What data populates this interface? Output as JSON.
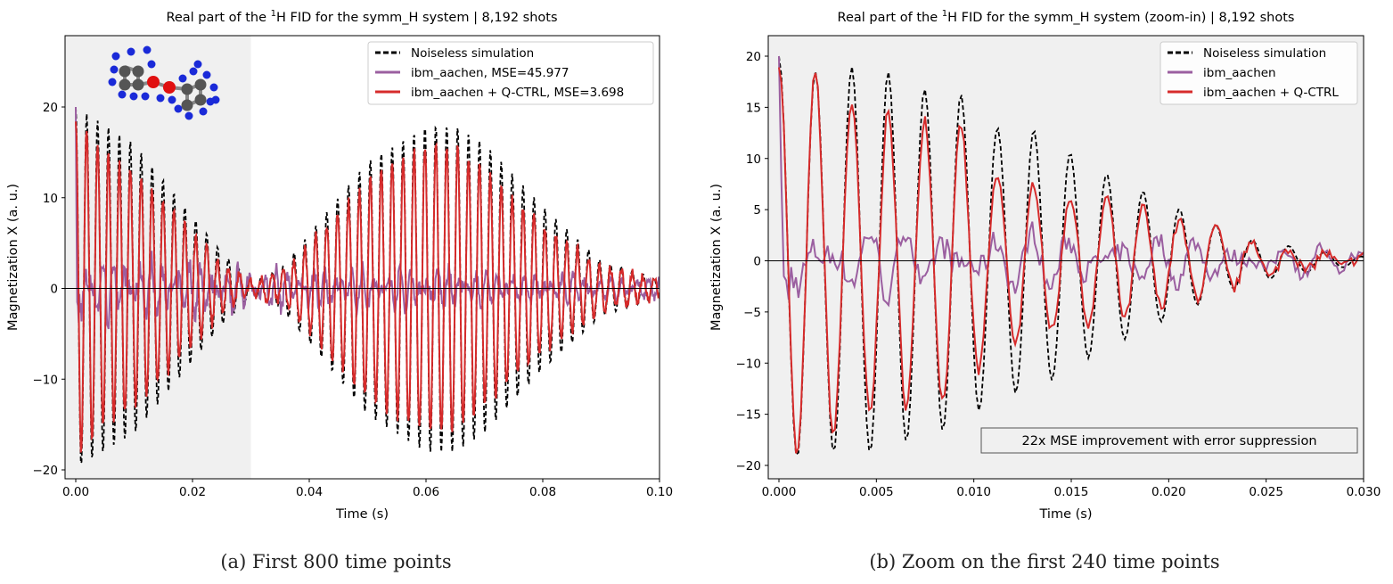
{
  "captions": [
    "(a) First 800 time points",
    "(b) Zoom on the first 240 time points"
  ],
  "colors": {
    "noiseless": "#000000",
    "ibm_aachen": "#9b5fa0",
    "qctrl": "#d62b2b",
    "background": "#f0f0f0"
  },
  "chart_data": [
    {
      "type": "line",
      "title_pre": "Real part of the ",
      "title_sup": "1",
      "title_post": "H FID for the symm_H system | 8,192 shots",
      "xlabel": "Time (s)",
      "ylabel": "Magnetization X (a. u.)",
      "xlim": [
        0,
        0.1
      ],
      "ylim": [
        -21,
        27
      ],
      "xticks": [
        "0.00",
        "0.02",
        "0.04",
        "0.06",
        "0.08",
        "0.10"
      ],
      "xtick_values": [
        0,
        0.02,
        0.04,
        0.06,
        0.08,
        0.1
      ],
      "yticks": [
        "−20",
        "−10",
        "0",
        "10",
        "20"
      ],
      "ytick_values": [
        -20,
        -10,
        0,
        10,
        20
      ],
      "shaded_region": [
        0,
        0.03
      ],
      "legend_position": "top-right",
      "series": [
        {
          "name": "Noiseless simulation",
          "style": "dashed",
          "envelope_t": [
            0,
            0.005,
            0.01,
            0.015,
            0.02,
            0.025,
            0.03,
            0.035,
            0.04,
            0.05,
            0.06,
            0.065,
            0.07,
            0.08,
            0.09,
            0.1
          ],
          "envelope_amp": [
            20,
            18,
            16,
            12,
            8,
            4,
            0.8,
            2,
            6,
            14,
            18,
            18,
            16,
            9,
            3,
            1
          ]
        },
        {
          "name": "ibm_aachen, MSE=45.977",
          "style": "solid",
          "envelope_t": [
            0,
            0.03,
            0.06,
            0.1
          ],
          "envelope_amp": [
            3.5,
            2,
            2,
            1
          ]
        },
        {
          "name": "ibm_aachen + Q-CTRL, MSE=3.698",
          "style": "solid",
          "envelope_t": [
            0,
            0.005,
            0.01,
            0.015,
            0.02,
            0.025,
            0.03,
            0.035,
            0.04,
            0.05,
            0.06,
            0.065,
            0.07,
            0.08,
            0.09,
            0.1
          ],
          "envelope_amp": [
            19,
            15,
            13,
            10,
            6,
            3,
            0.8,
            1.5,
            5,
            12,
            16,
            16,
            13,
            7,
            2.5,
            1
          ]
        }
      ],
      "inset_image": "molecule"
    },
    {
      "type": "line",
      "title_pre": "Real part of the ",
      "title_sup": "1",
      "title_post": "H FID for the symm_H system (zoom-in) | 8,192 shots",
      "xlabel": "Time (s)",
      "ylabel": "Magnetization X (a. u.)",
      "xlim": [
        0,
        0.03
      ],
      "ylim": [
        -21,
        22
      ],
      "xticks": [
        "0.000",
        "0.005",
        "0.010",
        "0.015",
        "0.020",
        "0.025",
        "0.030"
      ],
      "xtick_values": [
        0,
        0.005,
        0.01,
        0.015,
        0.02,
        0.025,
        0.03
      ],
      "yticks": [
        "−20",
        "−15",
        "−10",
        "−5",
        "0",
        "5",
        "10",
        "15",
        "20"
      ],
      "ytick_values": [
        -20,
        -15,
        -10,
        -5,
        0,
        5,
        10,
        15,
        20
      ],
      "legend_position": "top-right",
      "annotation": "22x MSE improvement with error suppression",
      "series": [
        {
          "name": "Noiseless simulation",
          "style": "dashed",
          "envelope_t": [
            0,
            0.0019,
            0.0037,
            0.0056,
            0.0075,
            0.0093,
            0.0112,
            0.013,
            0.0149,
            0.0167,
            0.0186,
            0.0204,
            0.0222,
            0.0241,
            0.026,
            0.0278,
            0.03
          ],
          "envelope_amp": [
            20,
            18.5,
            19,
            18.5,
            16.8,
            16.4,
            13,
            12.9,
            10.6,
            8.6,
            6.9,
            5.2,
            3.7,
            2.1,
            1.5,
            0.9,
            0.4
          ]
        },
        {
          "name": "ibm_aachen",
          "style": "solid",
          "envelope_t": [
            0,
            0.015,
            0.03
          ],
          "envelope_amp": [
            3.5,
            2.5,
            1
          ]
        },
        {
          "name": "ibm_aachen + Q-CTRL",
          "style": "solid",
          "envelope_t": [
            0,
            0.0019,
            0.0037,
            0.0056,
            0.0075,
            0.0093,
            0.0112,
            0.013,
            0.0149,
            0.0167,
            0.0186,
            0.0204,
            0.0222,
            0.0241,
            0.026,
            0.0278,
            0.03
          ],
          "envelope_amp": [
            19.5,
            18.5,
            15.5,
            14.5,
            14,
            13.5,
            8.2,
            7.7,
            6.3,
            6.3,
            5.2,
            3.9,
            3.3,
            2.2,
            1.3,
            0.8,
            0.4
          ]
        }
      ]
    }
  ]
}
